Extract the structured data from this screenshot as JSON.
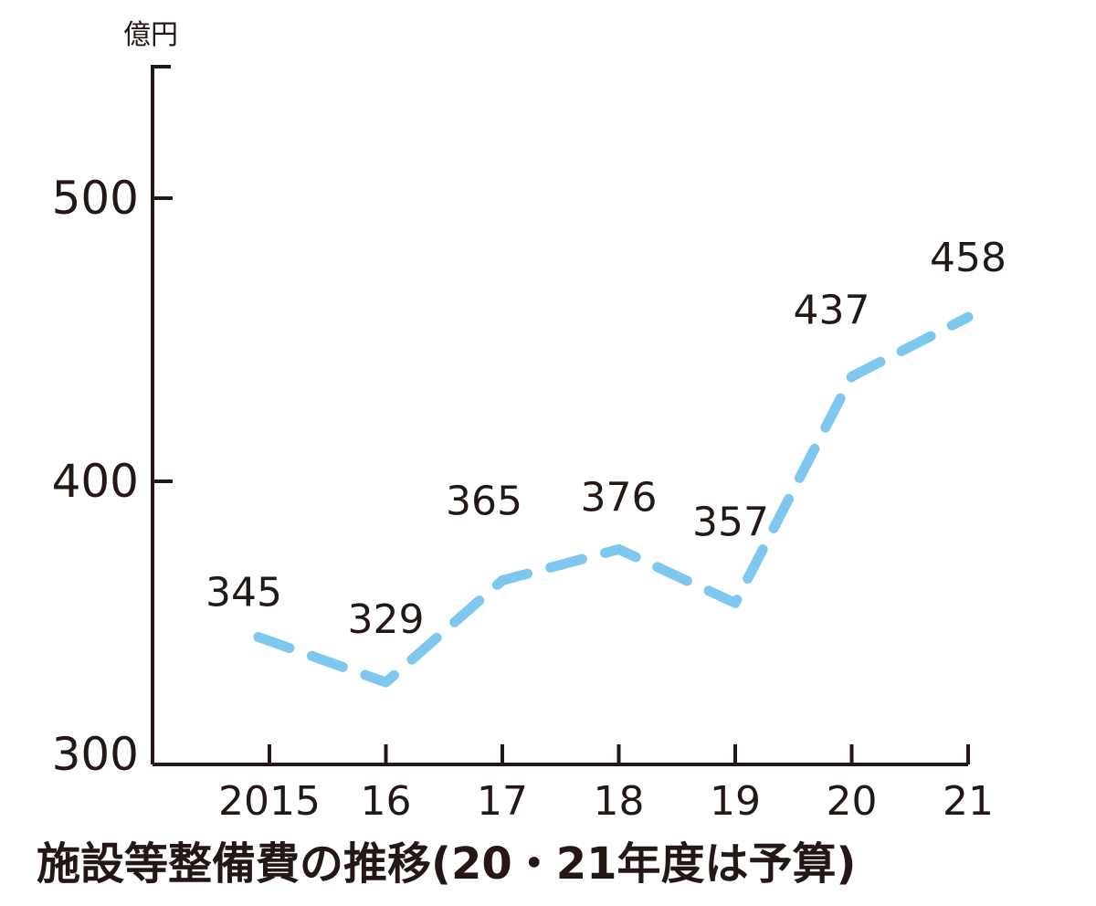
{
  "chart_data": {
    "type": "line",
    "title": "施設等整備費の推移(20・21年度は予算)",
    "y_unit": "億円",
    "categories": [
      "2015",
      "16",
      "17",
      "18",
      "19",
      "20",
      "21"
    ],
    "values": [
      345,
      329,
      365,
      376,
      357,
      437,
      458
    ],
    "data_labels": [
      "345",
      "329",
      "365",
      "376",
      "357",
      "437",
      "458"
    ],
    "y_ticks": [
      300,
      400,
      500
    ],
    "ylim": [
      300,
      540
    ],
    "line_style": "dashed",
    "grid": false,
    "line_color": "#7ec8ef",
    "axis_color": "#231815"
  }
}
